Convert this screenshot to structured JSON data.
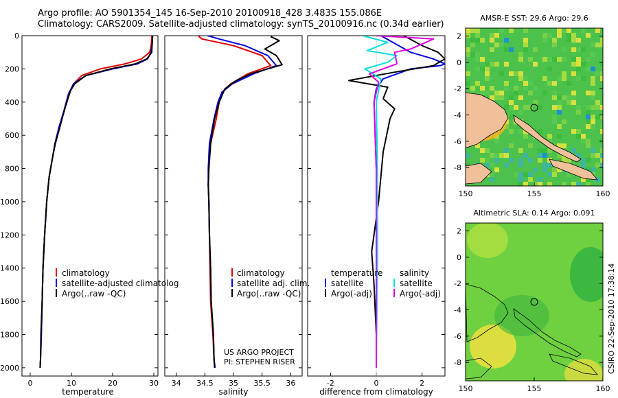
{
  "title_line1": "Argo profile: AO 5901354_145 16-Sep-2010 20100918_428 3.483S 155.086E",
  "title_line2": "Climatology: CARS2009. Satellite-adjusted climatology: synTS_20100916.nc (0.34d earlier)",
  "map1_title": "AMSR-E SST: 29.6 Argo: 29.6",
  "map2_title": "Altimetric SLA: 0.14 Argo: 0.091",
  "credit": "CSIRO 22-Sep-2010 17:38:14",
  "project_line1": "US ARGO PROJECT",
  "project_line2": "PI: STEPHEN RISER",
  "colors": {
    "climatology": "#e00000",
    "satellite": "#0000e0",
    "argo": "#000000",
    "salinity_satellite": "#00e0e0",
    "salinity_argo": "#e000e0",
    "land": "#f0c09a"
  },
  "chart_data": [
    {
      "type": "line",
      "id": "temperature",
      "xlabel": "temperature",
      "ylabel": "",
      "xlim": [
        -2,
        31
      ],
      "ylim": [
        2050,
        0
      ],
      "xticks": [
        "0",
        "10",
        "20",
        "30"
      ],
      "yticks": [
        "0",
        "200",
        "400",
        "600",
        "800",
        "1000",
        "1200",
        "1400",
        "1600",
        "1800",
        "2000"
      ],
      "legend": [
        "climatology",
        "satellite-adjusted climatolog",
        "Argo(..raw -QC)"
      ],
      "series": [
        {
          "name": "climatology",
          "x": [
            29.5,
            29.4,
            29.0,
            27,
            23,
            17,
            12.5,
            10.5,
            9.5,
            8.3,
            7.0,
            6.0,
            5.3,
            4.6,
            4.0,
            3.5,
            3.1,
            2.9,
            2.7,
            2.5,
            2.4
          ],
          "y": [
            0,
            50,
            100,
            140,
            170,
            200,
            240,
            290,
            350,
            450,
            550,
            650,
            750,
            850,
            1000,
            1200,
            1400,
            1600,
            1800,
            1950,
            2000
          ]
        },
        {
          "name": "satellite-adjusted climatolog",
          "x": [
            29.7,
            29.6,
            29.3,
            28.5,
            26,
            20,
            13.5,
            10.5,
            9.3,
            8.2,
            7.0,
            6.0,
            5.3,
            4.6,
            4.0,
            3.5,
            3.1,
            2.9,
            2.7,
            2.5,
            2.4
          ],
          "y": [
            0,
            50,
            100,
            140,
            170,
            200,
            240,
            290,
            350,
            450,
            550,
            650,
            750,
            850,
            1000,
            1200,
            1400,
            1600,
            1800,
            1950,
            2000
          ]
        },
        {
          "name": "Argo(..raw -QC)",
          "x": [
            29.7,
            29.6,
            29.5,
            28.3,
            25.5,
            19.5,
            13.5,
            10.8,
            9.8,
            8.5,
            7.2,
            6.1,
            5.3,
            4.6,
            4.0,
            3.5,
            3.1,
            2.9,
            2.6,
            2.5,
            2.4
          ],
          "y": [
            5,
            50,
            100,
            140,
            170,
            200,
            240,
            290,
            330,
            430,
            550,
            650,
            750,
            850,
            1000,
            1200,
            1400,
            1600,
            1800,
            1950,
            2000
          ]
        }
      ]
    },
    {
      "type": "line",
      "id": "salinity",
      "xlabel": "salinity",
      "ylabel": "",
      "xlim": [
        33.8,
        36.2
      ],
      "ylim": [
        2050,
        0
      ],
      "xticks": [
        "34",
        "34.5",
        "35",
        "35.5",
        "36"
      ],
      "legend": [
        "climatology",
        "satellite adj. clim.",
        "Argo(..raw -QC)"
      ],
      "series": [
        {
          "name": "climatology",
          "x": [
            34.38,
            34.45,
            35.0,
            35.5,
            35.65,
            35.25,
            34.95,
            34.8,
            34.75,
            34.7,
            34.6,
            34.57,
            34.56,
            34.57,
            34.58,
            34.59,
            34.6,
            34.62,
            34.64,
            34.66,
            34.67
          ],
          "y": [
            0,
            20,
            60,
            120,
            180,
            230,
            290,
            340,
            400,
            500,
            650,
            800,
            900,
            1000,
            1200,
            1400,
            1600,
            1700,
            1800,
            1950,
            2000
          ]
        },
        {
          "name": "satellite adj. clim.",
          "x": [
            34.55,
            34.75,
            35.2,
            35.6,
            35.75,
            35.35,
            34.98,
            34.8,
            34.73,
            34.66,
            34.58,
            34.56,
            34.56,
            34.57,
            34.58,
            34.6,
            34.61,
            34.63,
            34.65,
            34.66,
            34.68
          ],
          "y": [
            0,
            20,
            60,
            120,
            180,
            230,
            290,
            340,
            400,
            500,
            650,
            800,
            900,
            1000,
            1200,
            1400,
            1600,
            1700,
            1800,
            1950,
            2000
          ]
        },
        {
          "name": "Argo(..raw -QC)",
          "x": [
            35.65,
            35.8,
            35.55,
            35.75,
            35.85,
            35.3,
            35.05,
            34.85,
            34.75,
            34.67,
            34.6,
            34.57,
            34.56,
            34.57,
            34.58,
            34.6,
            34.61,
            34.63,
            34.65,
            34.66,
            34.67
          ],
          "y": [
            5,
            30,
            80,
            120,
            175,
            230,
            270,
            320,
            400,
            500,
            650,
            800,
            900,
            1000,
            1200,
            1400,
            1600,
            1700,
            1800,
            1950,
            2000
          ]
        }
      ]
    },
    {
      "type": "line",
      "id": "difference",
      "xlabel": "difference from climatology",
      "ylabel": "",
      "xlim": [
        -3,
        3
      ],
      "ylim": [
        2050,
        0
      ],
      "xticks": [
        "-2",
        "0",
        "2"
      ],
      "legend_temperature": {
        "heading": "temperature",
        "entries": [
          "satellite",
          "Argo(-adj)"
        ]
      },
      "legend_salinity": {
        "heading": "salinity",
        "entries": [
          "satellite",
          "Argo(-adj)"
        ]
      },
      "series": [
        {
          "name": "temperature satellite",
          "x": [
            0.2,
            1.5,
            2.5,
            3.0,
            2.8,
            1.5,
            0.3,
            0.0,
            -0.1,
            -0.05,
            0.0,
            0.0,
            0.0,
            0.0,
            0.0
          ],
          "y": [
            0,
            100,
            140,
            170,
            180,
            200,
            260,
            320,
            400,
            600,
            800,
            1000,
            1400,
            1800,
            2000
          ]
        },
        {
          "name": "temperature Argo(-adj)",
          "x": [
            1.2,
            2.0,
            2.7,
            3.0,
            2.5,
            0.8,
            -1.2,
            0.5,
            0.3,
            0.8,
            0.6,
            0.3,
            0.1,
            -0.2,
            -0.1,
            0.0,
            0.0
          ],
          "y": [
            0,
            60,
            100,
            140,
            180,
            220,
            270,
            310,
            380,
            440,
            500,
            700,
            1000,
            1300,
            1500,
            1800,
            2000
          ]
        },
        {
          "name": "salinity satellite",
          "x": [
            -0.6,
            0.5,
            -0.4,
            0.9,
            0.5,
            -0.5,
            0.2,
            0.0,
            0.05,
            0.05,
            0.0
          ],
          "y": [
            0,
            40,
            90,
            120,
            160,
            200,
            260,
            400,
            800,
            1400,
            2000
          ]
        },
        {
          "name": "salinity Argo(-adj)",
          "x": [
            0.0,
            2.5,
            1.5,
            0.8,
            0.9,
            -0.3,
            0.1,
            -0.1,
            0.0,
            0.0
          ],
          "y": [
            0,
            20,
            80,
            100,
            170,
            230,
            280,
            400,
            800,
            2000
          ]
        }
      ]
    },
    {
      "type": "heatmap",
      "id": "sst_map",
      "title": "AMSR-E SST: 29.6 Argo: 29.6",
      "xlim": [
        150,
        160
      ],
      "ylim": [
        -9.4,
        2.6
      ],
      "xticks": [
        "150",
        "155",
        "160"
      ],
      "yticks": [
        "2",
        "0",
        "-2",
        "-4",
        "-6",
        "-8"
      ],
      "argo_position": {
        "lon": 155.086,
        "lat": -3.483
      }
    },
    {
      "type": "heatmap",
      "id": "sla_map",
      "title": "Altimetric SLA: 0.14 Argo: 0.091",
      "xlim": [
        150,
        160
      ],
      "ylim": [
        -9.4,
        2.6
      ],
      "xticks": [
        "150",
        "155",
        "160"
      ],
      "yticks": [
        "2",
        "0",
        "-2",
        "-4",
        "-6",
        "-8"
      ],
      "argo_position": {
        "lon": 155.086,
        "lat": -3.483
      }
    }
  ]
}
